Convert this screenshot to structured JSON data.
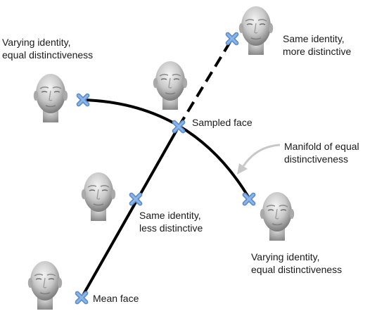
{
  "labels": {
    "top_left": [
      "Varying identity,",
      "equal distinctiveness"
    ],
    "top_right": [
      "Same identity,",
      "more distinctive"
    ],
    "sampled": "Sampled face",
    "manifold": [
      "Manifold of equal",
      "distinctiveness"
    ],
    "middle": [
      "Same identity,",
      "less distinctive"
    ],
    "bottom_right": [
      "Varying identity,",
      "equal distinctiveness"
    ],
    "mean": "Mean face"
  },
  "icons": [
    "face-render-icon",
    "cross-marker-icon",
    "arrow-icon"
  ],
  "colors": {
    "marker": "#6f9fd6",
    "line": "#000000",
    "arrow": "#c8c8c8",
    "text": "#1a1a1a"
  }
}
